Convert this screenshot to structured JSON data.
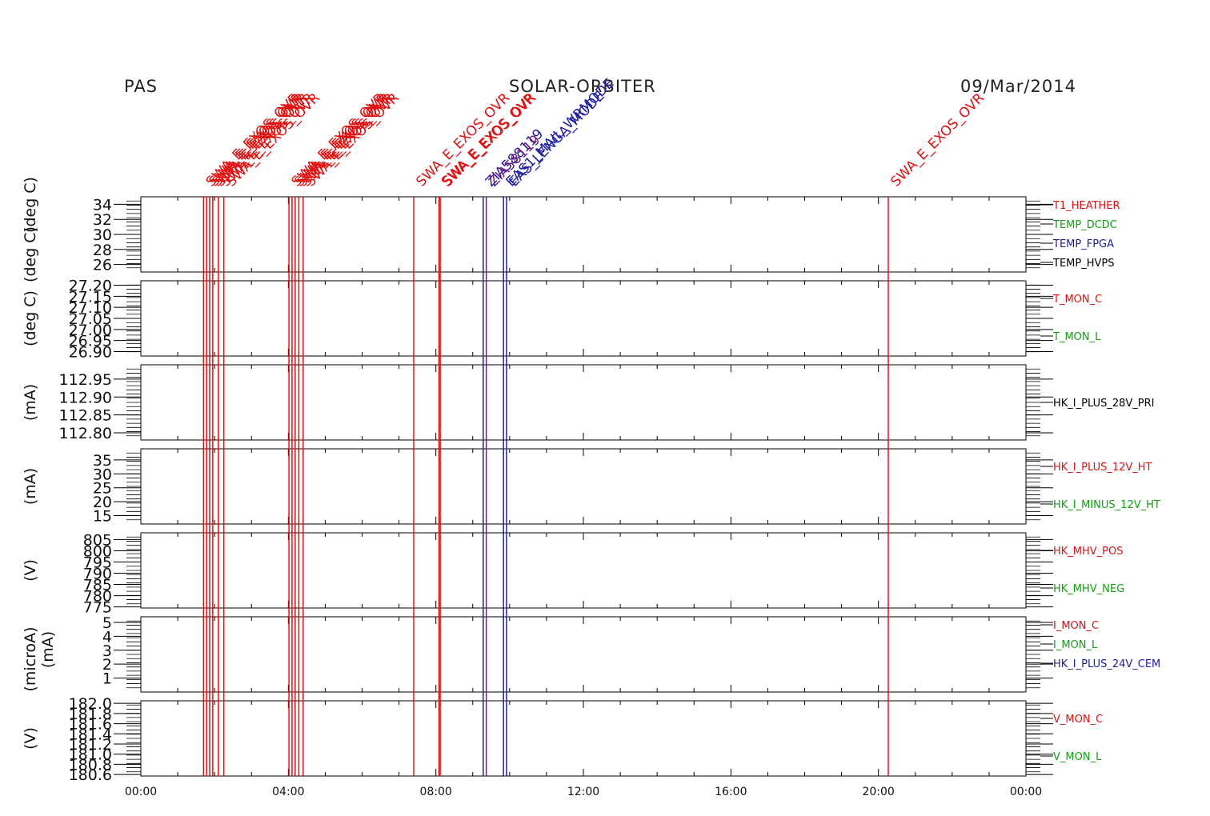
{
  "header": {
    "instrument": "PAS",
    "mission": "SOLAR-ORBITER",
    "date": "09/Mar/2014"
  },
  "chart_data": {
    "type": "line",
    "x_axis": {
      "range": [
        "00:00",
        "24:00"
      ],
      "tick_labels": [
        "00:00",
        "04:00",
        "08:00",
        "12:00",
        "16:00",
        "20:00",
        "00:00"
      ]
    },
    "panels": [
      {
        "id": "temps",
        "ylabel": "(deg C)",
        "ylabel2": "(deg C)",
        "ylim": [
          25,
          35
        ],
        "ytick_labels": [
          "34",
          "32",
          "30",
          "28",
          "26"
        ],
        "ytick_values": [
          34,
          32,
          30,
          28,
          26
        ],
        "legend": [
          {
            "name": "T1_HEATHER",
            "color": "#e01010"
          },
          {
            "name": "TEMP_DCDC",
            "color": "#10a010"
          },
          {
            "name": "TEMP_FPGA",
            "color": "#2020a0"
          },
          {
            "name": "TEMP_HVPS",
            "color": "#000000"
          }
        ]
      },
      {
        "id": "tmon",
        "ylabel": "(deg C)",
        "ylim": [
          26.88,
          27.22
        ],
        "ytick_labels": [
          "27.20",
          "27.15",
          "27.10",
          "27.05",
          "27.00",
          "26.95",
          "26.90"
        ],
        "ytick_values": [
          27.2,
          27.15,
          27.1,
          27.05,
          27.0,
          26.95,
          26.9
        ],
        "legend": [
          {
            "name": "T_MON_C",
            "color": "#e01010"
          },
          {
            "name": "T_MON_L",
            "color": "#10a010"
          }
        ]
      },
      {
        "id": "i28",
        "ylabel": "(mA)",
        "ylim": [
          112.78,
          112.99
        ],
        "ytick_labels": [
          "112.95",
          "112.90",
          "112.85",
          "112.80"
        ],
        "ytick_values": [
          112.95,
          112.9,
          112.85,
          112.8
        ],
        "legend": [
          {
            "name": "HK_I_PLUS_28V_PRI",
            "color": "#000000"
          }
        ]
      },
      {
        "id": "i12",
        "ylabel": "(mA)",
        "ylim": [
          12,
          39
        ],
        "ytick_labels": [
          "35",
          "30",
          "25",
          "20",
          "15"
        ],
        "ytick_values": [
          35,
          30,
          25,
          20,
          15
        ],
        "legend": [
          {
            "name": "HK_I_PLUS_12V_HT",
            "color": "#e01010"
          },
          {
            "name": "HK_I_MINUS_12V_HT",
            "color": "#10a010"
          }
        ]
      },
      {
        "id": "mhv",
        "ylabel": "(V)",
        "ylim": [
          774.5,
          808
        ],
        "ytick_labels": [
          "805",
          "800",
          "795",
          "790",
          "785",
          "780",
          "775"
        ],
        "ytick_values": [
          805,
          800,
          795,
          790,
          785,
          780,
          775
        ],
        "legend": [
          {
            "name": "HK_MHV_POS",
            "color": "#e01010"
          },
          {
            "name": "HK_MHV_NEG",
            "color": "#10a010"
          }
        ]
      },
      {
        "id": "imon",
        "ylabel": "(microA)",
        "ylabel2": "(mA)",
        "ylim": [
          0,
          5.4
        ],
        "ytick_labels": [
          "5",
          "4",
          "3",
          "2",
          "1"
        ],
        "ytick_values": [
          5,
          4,
          3,
          2,
          1
        ],
        "legend": [
          {
            "name": "I_MON_C",
            "color": "#e01010"
          },
          {
            "name": "I_MON_L",
            "color": "#10a010"
          },
          {
            "name": "HK_I_PLUS_24V_CEM",
            "color": "#2020a0"
          }
        ]
      },
      {
        "id": "vmon",
        "ylabel": "(V)",
        "ylim": [
          180.57,
          182.05
        ],
        "ytick_labels": [
          "182.0",
          "181.8",
          "181.6",
          "181.4",
          "181.2",
          "181.0",
          "180.8",
          "180.6"
        ],
        "ytick_values": [
          182.0,
          181.8,
          181.6,
          181.4,
          181.2,
          181.0,
          180.8,
          180.6
        ],
        "legend": [
          {
            "name": "V_MON_C",
            "color": "#e01010"
          },
          {
            "name": "V_MON_L",
            "color": "#10a010"
          }
        ]
      }
    ],
    "event_markers": [
      {
        "time": "01:42",
        "label": "SWA_E_EXOS_OVR",
        "color": "#e01010"
      },
      {
        "time": "01:47",
        "label": "SWA_E_EXOS_OVR",
        "color": "#e01010"
      },
      {
        "time": "01:52",
        "label": "SWA_E_EXOS_OVR",
        "color": "#e01010"
      },
      {
        "time": "01:57",
        "label": "SWA_E_EXOS_OVR",
        "color": "#e01010"
      },
      {
        "time": "02:06",
        "label": "SWA_E_EXOS_OVR",
        "color": "#e01010"
      },
      {
        "time": "02:15",
        "label": "SWA_E_EXOS_OVR",
        "color": "#e01010"
      },
      {
        "time": "04:01",
        "label": "SWA_E_EXOS_OVR",
        "color": "#e01010"
      },
      {
        "time": "04:06",
        "label": "SWA_E_EXOS_OVR",
        "color": "#e01010"
      },
      {
        "time": "04:11",
        "label": "SWA_E_EXOS_OVR",
        "color": "#e01010"
      },
      {
        "time": "04:17",
        "label": "SWA_E_EXOS_OVR",
        "color": "#e01010"
      },
      {
        "time": "04:24",
        "label": "SWA_E_EXOS_OVR",
        "color": "#e01010"
      },
      {
        "time": "07:24",
        "label": "SWA_E_EXOS_OVR",
        "color": "#e01010"
      },
      {
        "time": "08:05",
        "label": "SWA_E_EXOS_OVR",
        "color": "#e01010"
      },
      {
        "time": "08:07",
        "label": "SWA_E_EXOS_OVR",
        "color": "#e01010"
      },
      {
        "time": "09:17",
        "label": "ZIA588119",
        "color": "#2020a0"
      },
      {
        "time": "09:22",
        "label": "ZIA58119",
        "color": "#7a1a7a"
      },
      {
        "time": "09:50",
        "label": "EAS1_MAIL_WRMODE",
        "color": "#2020a0"
      },
      {
        "time": "09:55",
        "label": "EAS_LENGA_MODE",
        "color": "#2020a0"
      },
      {
        "time": "20:16",
        "label": "SWA_E_EXOS_OVR",
        "color": "#e01010"
      }
    ]
  }
}
